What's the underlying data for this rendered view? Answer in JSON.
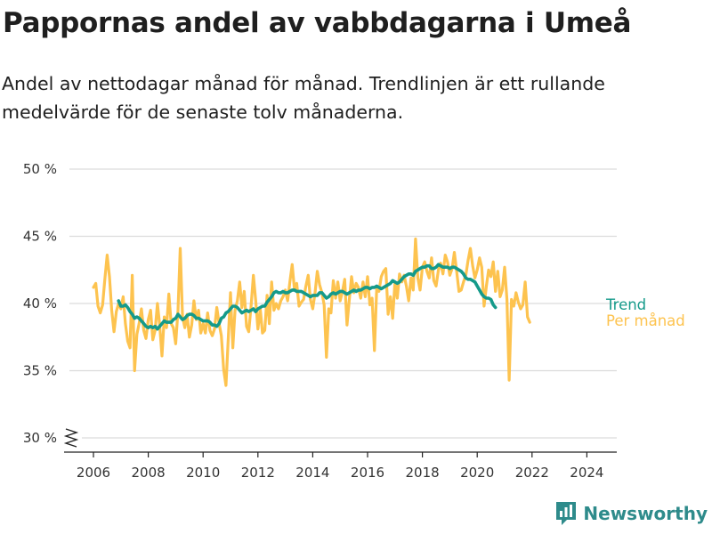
{
  "header": {
    "title": "Pappornas andel av vabbdagarna i Umeå",
    "subtitle": "Andel av nettodagar månad för månad. Trendlinjen är ett rullande medelvärde för de senaste tolv månaderna."
  },
  "brand": {
    "name": "Newsworthy",
    "icon": "newsworthy-logo-icon",
    "color": "#2e8b8b"
  },
  "chart_data": {
    "type": "line",
    "x_start": "2006-01",
    "ylim": [
      30,
      50
    ],
    "yticks": [
      30,
      35,
      40,
      45,
      50
    ],
    "ytick_labels": [
      "30 %",
      "35 %",
      "40 %",
      "45 %",
      "50 %"
    ],
    "xticks": [
      2006,
      2008,
      2010,
      2012,
      2014,
      2016,
      2018,
      2020,
      2022,
      2024
    ],
    "xtick_labels": [
      "2006",
      "2008",
      "2010",
      "2012",
      "2014",
      "2016",
      "2018",
      "2020",
      "2022",
      "2024"
    ],
    "grid": true,
    "legend_placement": "right-end",
    "series": [
      {
        "name": "Per månad",
        "color": "#fdc34f",
        "values": [
          41.2,
          41.5,
          39.8,
          39.3,
          39.9,
          41.8,
          43.6,
          42.0,
          39.5,
          37.9,
          39.4,
          40.0,
          39.6,
          40.5,
          38.5,
          37.2,
          36.7,
          42.1,
          35.0,
          37.7,
          38.5,
          39.6,
          38.0,
          37.4,
          38.8,
          39.5,
          37.3,
          38.0,
          40.0,
          38.4,
          36.1,
          39.0,
          38.2,
          40.7,
          38.5,
          38.2,
          37.0,
          39.5,
          44.1,
          39.0,
          38.2,
          39.2,
          37.5,
          38.4,
          40.2,
          38.8,
          39.5,
          37.8,
          38.5,
          37.8,
          39.3,
          38.0,
          37.6,
          38.1,
          39.7,
          38.5,
          37.6,
          35.1,
          33.9,
          37.3,
          40.8,
          36.7,
          39.5,
          40.2,
          41.6,
          39.7,
          40.9,
          38.3,
          37.9,
          39.8,
          42.1,
          40.3,
          38.1,
          39.6,
          37.8,
          38.0,
          40.6,
          38.5,
          41.6,
          39.5,
          40.0,
          39.6,
          40.2,
          40.5,
          41.0,
          40.2,
          41.6,
          42.9,
          41.0,
          41.5,
          39.8,
          40.1,
          40.3,
          41.3,
          42.1,
          40.3,
          39.6,
          40.8,
          42.4,
          41.4,
          40.8,
          39.9,
          36.0,
          39.6,
          39.3,
          41.7,
          40.4,
          41.6,
          40.2,
          40.9,
          41.8,
          38.4,
          40.3,
          42.0,
          40.8,
          41.5,
          41.2,
          40.4,
          41.6,
          40.5,
          42.0,
          39.9,
          40.4,
          36.5,
          41.2,
          40.9,
          42.0,
          42.4,
          42.6,
          39.2,
          40.5,
          38.9,
          41.6,
          40.4,
          42.2,
          41.6,
          42.1,
          41.3,
          40.2,
          41.9,
          41.0,
          44.8,
          41.9,
          41.0,
          42.7,
          43.1,
          42.4,
          41.9,
          43.4,
          41.7,
          41.3,
          42.5,
          43.0,
          42.2,
          43.6,
          43.1,
          42.1,
          42.6,
          43.8,
          42.4,
          40.9,
          41.0,
          41.6,
          42.1,
          43.2,
          44.1,
          42.8,
          41.9,
          42.5,
          43.4,
          42.7,
          39.8,
          41.3,
          42.5,
          42.0,
          43.1,
          40.9,
          42.4,
          40.5,
          41.0,
          42.7,
          40.3,
          34.3,
          40.3,
          39.8,
          40.8,
          40.1,
          39.6,
          39.9,
          41.6,
          39.0,
          38.6
        ]
      },
      {
        "name": "Trend",
        "color": "#159a8a",
        "x_start": "2006-12",
        "values": [
          40.2,
          39.8,
          39.8,
          39.9,
          39.7,
          39.4,
          39.2,
          38.9,
          39.0,
          38.9,
          38.7,
          38.5,
          38.3,
          38.2,
          38.3,
          38.2,
          38.3,
          38.1,
          38.3,
          38.5,
          38.7,
          38.6,
          38.6,
          38.6,
          38.8,
          38.9,
          39.2,
          39.0,
          38.8,
          38.9,
          39.1,
          39.2,
          39.2,
          39.1,
          38.9,
          38.9,
          38.8,
          38.7,
          38.7,
          38.7,
          38.6,
          38.4,
          38.4,
          38.3,
          38.5,
          38.9,
          39.0,
          39.3,
          39.4,
          39.6,
          39.8,
          39.8,
          39.7,
          39.5,
          39.3,
          39.4,
          39.5,
          39.4,
          39.5,
          39.6,
          39.4,
          39.6,
          39.7,
          39.8,
          39.8,
          40.1,
          40.3,
          40.5,
          40.8,
          40.9,
          40.8,
          40.8,
          40.9,
          40.8,
          40.8,
          40.9,
          41.0,
          41.0,
          40.9,
          40.9,
          40.9,
          40.8,
          40.7,
          40.6,
          40.5,
          40.6,
          40.6,
          40.6,
          40.8,
          40.8,
          40.6,
          40.4,
          40.5,
          40.7,
          40.8,
          40.7,
          40.8,
          40.9,
          40.9,
          40.8,
          40.7,
          40.8,
          40.9,
          41.0,
          40.9,
          41.0,
          41.0,
          41.1,
          41.2,
          41.2,
          41.1,
          41.2,
          41.2,
          41.3,
          41.2,
          41.1,
          41.2,
          41.3,
          41.4,
          41.5,
          41.7,
          41.6,
          41.5,
          41.6,
          41.8,
          42.0,
          42.1,
          42.2,
          42.2,
          42.1,
          42.4,
          42.5,
          42.6,
          42.7,
          42.7,
          42.8,
          42.8,
          42.6,
          42.6,
          42.7,
          42.9,
          42.8,
          42.7,
          42.7,
          42.7,
          42.6,
          42.7,
          42.7,
          42.6,
          42.5,
          42.4,
          42.2,
          41.9,
          41.8,
          41.8,
          41.7,
          41.6,
          41.3,
          41.0,
          40.7,
          40.5,
          40.4,
          40.4,
          40.3,
          39.9,
          39.7
        ]
      }
    ]
  }
}
